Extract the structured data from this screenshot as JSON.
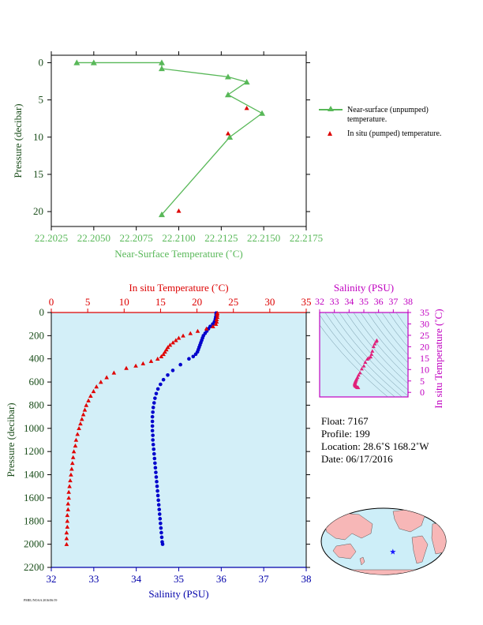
{
  "chart_data": [
    {
      "type": "line",
      "xlabel": "Near-Surface Temperature (˚C)",
      "ylabel": "Pressure (decibar)",
      "xlim": [
        22.2025,
        22.2175
      ],
      "ylim": [
        22,
        -1
      ],
      "xticks": [
        "22.2025",
        "22.2050",
        "22.2075",
        "22.2100",
        "22.2125",
        "22.2150",
        "22.2175"
      ],
      "yticks": [
        "0",
        "5",
        "10",
        "15",
        "20"
      ],
      "series": [
        {
          "name": "Near-surface (unpumped) temperature.",
          "marker": "triangle",
          "color": "#58b858",
          "points": [
            [
              22.204,
              0.0
            ],
            [
              22.205,
              0.0
            ],
            [
              22.209,
              0.0
            ],
            [
              22.209,
              0.8
            ],
            [
              22.2129,
              1.9
            ],
            [
              22.214,
              2.6
            ],
            [
              22.2129,
              4.3
            ],
            [
              22.2149,
              6.8
            ],
            [
              22.213,
              10.0
            ],
            [
              22.209,
              20.4
            ]
          ]
        },
        {
          "name": "In situ (pumped) temperature.",
          "marker": "triangle",
          "color": "#dd0000",
          "points": [
            [
              22.214,
              6.1
            ],
            [
              22.2129,
              9.5
            ],
            [
              22.21,
              19.9
            ]
          ]
        }
      ]
    },
    {
      "type": "scatter",
      "ylabel": "Pressure (decibar)",
      "ylim": [
        2200,
        0
      ],
      "yticks": [
        "0",
        "200",
        "400",
        "600",
        "800",
        "1000",
        "1200",
        "1400",
        "1600",
        "1800",
        "2000",
        "2200"
      ],
      "temperature_axis": {
        "label": "In situ Temperature (˚C)",
        "range": [
          0,
          35
        ],
        "ticks": [
          "0",
          "5",
          "10",
          "15",
          "20",
          "25",
          "30",
          "35"
        ],
        "color": "#dd0000"
      },
      "salinity_axis": {
        "label": "Salinity (PSU)",
        "range": [
          32,
          38
        ],
        "ticks": [
          "32",
          "33",
          "34",
          "35",
          "36",
          "37",
          "38"
        ],
        "color": "#0000aa"
      },
      "temperature_profile": [
        [
          22.8,
          5
        ],
        [
          22.8,
          20
        ],
        [
          22.8,
          40
        ],
        [
          22.7,
          60
        ],
        [
          22.7,
          80
        ],
        [
          22.6,
          100
        ],
        [
          22.2,
          120
        ],
        [
          21.3,
          140
        ],
        [
          20.1,
          160
        ],
        [
          19.1,
          180
        ],
        [
          18.1,
          200
        ],
        [
          17.5,
          220
        ],
        [
          17.1,
          240
        ],
        [
          16.7,
          260
        ],
        [
          16.3,
          280
        ],
        [
          16.0,
          300
        ],
        [
          15.8,
          320
        ],
        [
          15.6,
          340
        ],
        [
          15.4,
          360
        ],
        [
          15.1,
          380
        ],
        [
          14.6,
          400
        ],
        [
          13.7,
          420
        ],
        [
          12.6,
          440
        ],
        [
          11.6,
          460
        ],
        [
          10.3,
          480
        ],
        [
          8.6,
          520
        ],
        [
          7.6,
          560
        ],
        [
          6.8,
          600
        ],
        [
          6.2,
          640
        ],
        [
          5.8,
          680
        ],
        [
          5.4,
          720
        ],
        [
          5.1,
          760
        ],
        [
          4.8,
          800
        ],
        [
          4.6,
          840
        ],
        [
          4.4,
          880
        ],
        [
          4.2,
          920
        ],
        [
          4.0,
          960
        ],
        [
          3.8,
          1000
        ],
        [
          3.6,
          1050
        ],
        [
          3.4,
          1100
        ],
        [
          3.3,
          1150
        ],
        [
          3.1,
          1200
        ],
        [
          3.0,
          1250
        ],
        [
          2.9,
          1300
        ],
        [
          2.8,
          1350
        ],
        [
          2.7,
          1400
        ],
        [
          2.6,
          1450
        ],
        [
          2.5,
          1500
        ],
        [
          2.4,
          1550
        ],
        [
          2.4,
          1600
        ],
        [
          2.3,
          1650
        ],
        [
          2.3,
          1700
        ],
        [
          2.2,
          1750
        ],
        [
          2.2,
          1800
        ],
        [
          2.2,
          1850
        ],
        [
          2.1,
          1900
        ],
        [
          2.1,
          1950
        ],
        [
          2.1,
          2000
        ]
      ],
      "salinity_profile": [
        [
          35.88,
          5
        ],
        [
          35.88,
          20
        ],
        [
          35.87,
          40
        ],
        [
          35.86,
          60
        ],
        [
          35.84,
          80
        ],
        [
          35.8,
          100
        ],
        [
          35.74,
          120
        ],
        [
          35.7,
          140
        ],
        [
          35.66,
          160
        ],
        [
          35.62,
          180
        ],
        [
          35.58,
          200
        ],
        [
          35.56,
          220
        ],
        [
          35.54,
          240
        ],
        [
          35.52,
          260
        ],
        [
          35.5,
          280
        ],
        [
          35.48,
          300
        ],
        [
          35.46,
          320
        ],
        [
          35.44,
          340
        ],
        [
          35.4,
          360
        ],
        [
          35.34,
          380
        ],
        [
          35.24,
          400
        ],
        [
          35.04,
          450
        ],
        [
          34.86,
          500
        ],
        [
          34.74,
          540
        ],
        [
          34.64,
          580
        ],
        [
          34.57,
          620
        ],
        [
          34.51,
          660
        ],
        [
          34.47,
          700
        ],
        [
          34.44,
          740
        ],
        [
          34.42,
          780
        ],
        [
          34.4,
          820
        ],
        [
          34.39,
          860
        ],
        [
          34.38,
          900
        ],
        [
          34.38,
          940
        ],
        [
          34.38,
          980
        ],
        [
          34.38,
          1020
        ],
        [
          34.39,
          1060
        ],
        [
          34.39,
          1100
        ],
        [
          34.4,
          1140
        ],
        [
          34.41,
          1180
        ],
        [
          34.42,
          1220
        ],
        [
          34.43,
          1260
        ],
        [
          34.44,
          1300
        ],
        [
          34.45,
          1340
        ],
        [
          34.46,
          1380
        ],
        [
          34.47,
          1420
        ],
        [
          34.48,
          1460
        ],
        [
          34.49,
          1500
        ],
        [
          34.5,
          1540
        ],
        [
          34.51,
          1580
        ],
        [
          34.52,
          1620
        ],
        [
          34.53,
          1660
        ],
        [
          34.54,
          1700
        ],
        [
          34.55,
          1740
        ],
        [
          34.56,
          1780
        ],
        [
          34.57,
          1820
        ],
        [
          34.58,
          1860
        ],
        [
          34.59,
          1900
        ],
        [
          34.6,
          1940
        ],
        [
          34.61,
          1980
        ],
        [
          34.62,
          2000
        ]
      ]
    },
    {
      "type": "scatter",
      "xlabel": "Salinity (PSU)",
      "ylabel": "In situ Temperature (˚C)",
      "xlim": [
        32,
        38
      ],
      "ylim": [
        -2,
        35
      ],
      "xticks": [
        "32",
        "33",
        "34",
        "35",
        "36",
        "37",
        "38"
      ],
      "yticks": [
        "0",
        "5",
        "10",
        "15",
        "20",
        "25",
        "30",
        "35"
      ],
      "color": "#e0207a",
      "points": [
        [
          35.88,
          22.8
        ],
        [
          35.84,
          22.4
        ],
        [
          35.74,
          21.3
        ],
        [
          35.66,
          20.1
        ],
        [
          35.58,
          18.1
        ],
        [
          35.52,
          16.7
        ],
        [
          35.46,
          15.6
        ],
        [
          35.34,
          15.1
        ],
        [
          35.24,
          14.6
        ],
        [
          35.1,
          13.2
        ],
        [
          35.0,
          11.6
        ],
        [
          34.86,
          10.3
        ],
        [
          34.74,
          8.6
        ],
        [
          34.64,
          7.6
        ],
        [
          34.57,
          6.6
        ],
        [
          34.51,
          5.9
        ],
        [
          34.47,
          5.4
        ],
        [
          34.44,
          5.0
        ],
        [
          34.42,
          4.6
        ],
        [
          34.4,
          4.3
        ],
        [
          34.39,
          4.0
        ],
        [
          34.38,
          3.7
        ],
        [
          34.39,
          3.4
        ],
        [
          34.4,
          3.1
        ],
        [
          34.43,
          2.9
        ],
        [
          34.46,
          2.7
        ],
        [
          34.5,
          2.5
        ],
        [
          34.54,
          2.3
        ],
        [
          34.58,
          2.2
        ],
        [
          34.62,
          2.1
        ]
      ]
    }
  ],
  "float_info": {
    "float": "Float:  7167",
    "profile": "Profile:  199",
    "location": "Location:  28.6˚S  168.2˚W",
    "date": "Date:  06/17/2016"
  },
  "map": {
    "marker": "star",
    "latitude": -28.6,
    "longitude": -168.2,
    "ocean_color": "#cdeef8",
    "land_color": "#f7b7b7"
  },
  "footer_text": "PMEL/NOAA 2016/06/19"
}
